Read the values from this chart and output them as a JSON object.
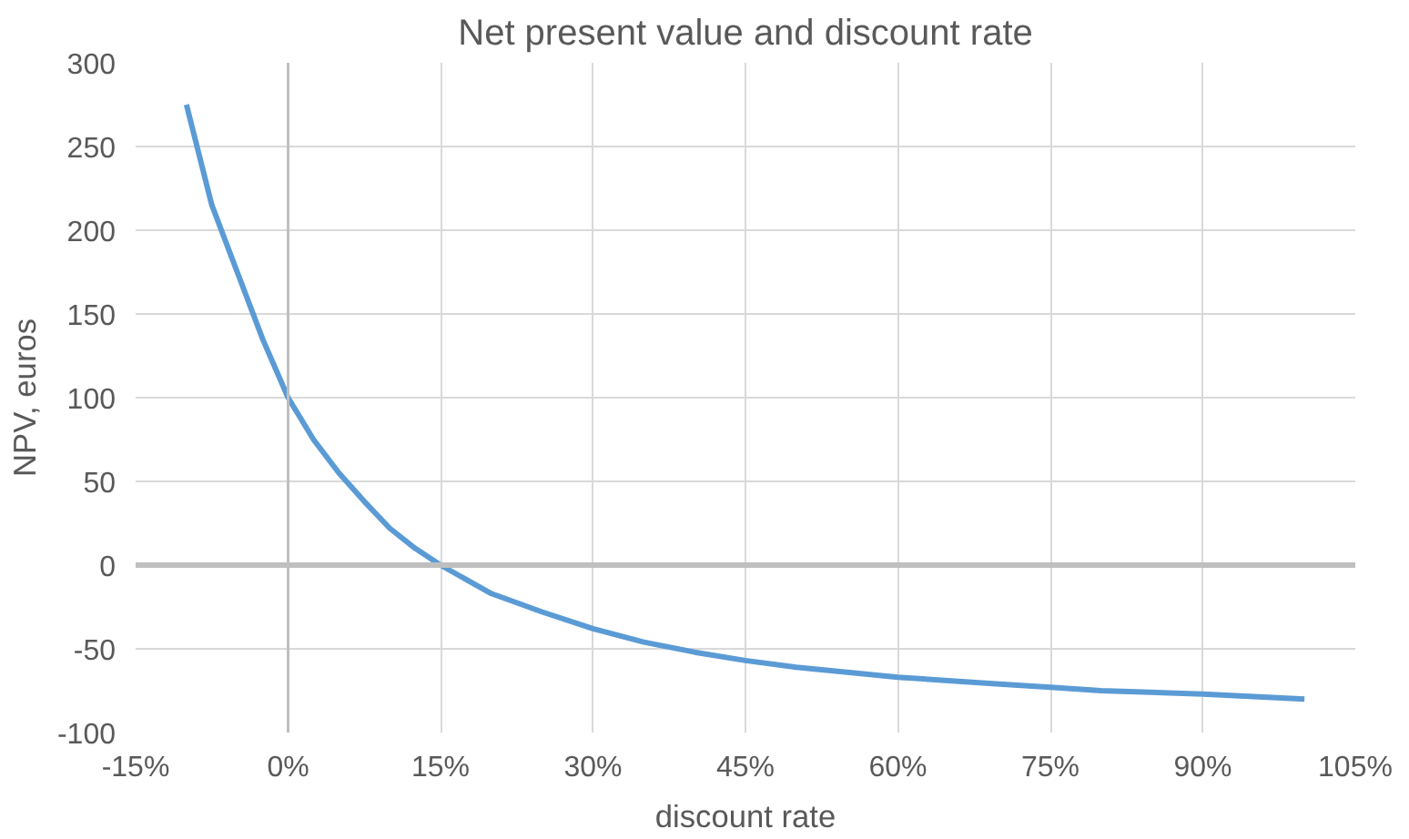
{
  "chart_data": {
    "type": "line",
    "title": "Net present value and discount rate",
    "xlabel": "discount rate",
    "ylabel": "NPV, euros",
    "x": [
      -10,
      -7.5,
      -5,
      -2.5,
      0,
      2.5,
      5,
      7.5,
      10,
      12.5,
      15,
      20,
      25,
      30,
      35,
      40,
      45,
      50,
      60,
      70,
      75,
      80,
      90,
      100
    ],
    "series": [
      {
        "color": "#5b9bd5",
        "values": [
          275,
          215,
          175,
          135,
          100,
          75,
          55,
          38,
          22,
          10,
          0,
          -17,
          -28,
          -38,
          -46,
          -52,
          -57,
          -61,
          -67,
          -71,
          -73,
          -75,
          -77,
          -80
        ]
      }
    ],
    "xlim": [
      -15,
      105
    ],
    "xticks": [
      {
        "value": -15,
        "label": "-15%"
      },
      {
        "value": 0,
        "label": "0%"
      },
      {
        "value": 15,
        "label": "15%"
      },
      {
        "value": 30,
        "label": "30%"
      },
      {
        "value": 45,
        "label": "45%"
      },
      {
        "value": 60,
        "label": "60%"
      },
      {
        "value": 75,
        "label": "75%"
      },
      {
        "value": 90,
        "label": "90%"
      },
      {
        "value": 105,
        "label": "105%"
      }
    ],
    "ylim": [
      -100,
      300
    ],
    "yticks": [
      -100,
      -50,
      0,
      50,
      100,
      150,
      200,
      250,
      300
    ],
    "grid": true,
    "marker": "none",
    "line_style": "solid"
  }
}
